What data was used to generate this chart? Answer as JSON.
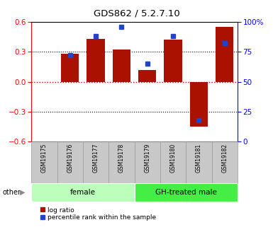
{
  "title": "GDS862 / 5.2.7.10",
  "samples": [
    "GSM19175",
    "GSM19176",
    "GSM19177",
    "GSM19178",
    "GSM19179",
    "GSM19180",
    "GSM19181",
    "GSM19182"
  ],
  "log_ratio": [
    0.0,
    0.28,
    0.43,
    0.32,
    0.12,
    0.42,
    -0.45,
    0.55
  ],
  "percentile_rank": [
    null,
    72,
    88,
    96,
    65,
    88,
    18,
    82
  ],
  "groups": [
    {
      "label": "female",
      "start": 0,
      "end": 3,
      "color": "#bbffbb"
    },
    {
      "label": "GH-treated male",
      "start": 4,
      "end": 7,
      "color": "#44ee44"
    }
  ],
  "ylim_left": [
    -0.6,
    0.6
  ],
  "ylim_right": [
    0,
    100
  ],
  "yticks_left": [
    -0.6,
    -0.3,
    0.0,
    0.3,
    0.6
  ],
  "yticks_right": [
    0,
    25,
    50,
    75,
    100
  ],
  "bar_color": "#aa1100",
  "dot_color": "#2244cc",
  "zero_line_color": "#cc0000",
  "legend_items": [
    "log ratio",
    "percentile rank within the sample"
  ],
  "sample_box_color": "#c8c8c8",
  "sample_box_edge": "#999999"
}
